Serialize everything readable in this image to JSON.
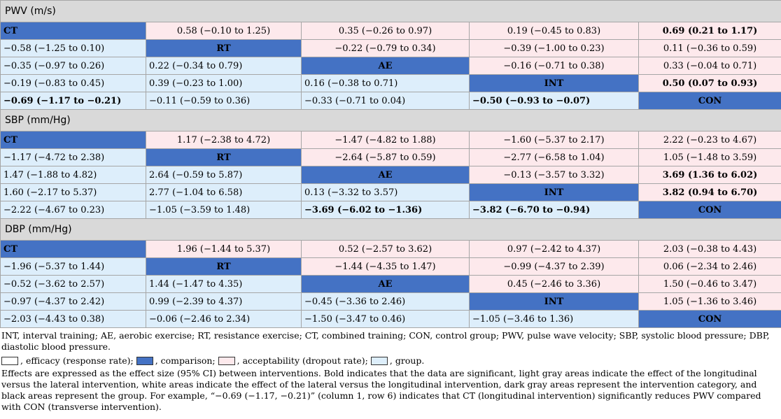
{
  "sections": [
    {
      "title": "PWV (m/s)",
      "rows": [
        [
          {
            "t": "CT",
            "k": "diag"
          },
          {
            "t": "0.58 (−0.10 to 1.25)",
            "k": "upper"
          },
          {
            "t": "0.35 (−0.26 to 0.97)",
            "k": "upper"
          },
          {
            "t": "0.19 (−0.45 to 0.83)",
            "k": "upper"
          },
          {
            "t": "0.69 (0.21 to 1.17)",
            "k": "upper",
            "b": true
          }
        ],
        [
          {
            "t": "−0.58 (−1.25 to 0.10)",
            "k": "lower"
          },
          {
            "t": "RT",
            "k": "diag"
          },
          {
            "t": "−0.22 (−0.79 to 0.34)",
            "k": "upper"
          },
          {
            "t": "−0.39 (−1.00 to 0.23)",
            "k": "upper"
          },
          {
            "t": "0.11 (−0.36 to 0.59)",
            "k": "upper"
          }
        ],
        [
          {
            "t": "−0.35 (−0.97 to 0.26)",
            "k": "lower"
          },
          {
            "t": "0.22 (−0.34 to 0.79)",
            "k": "lower"
          },
          {
            "t": "AE",
            "k": "diag"
          },
          {
            "t": "−0.16 (−0.71 to 0.38)",
            "k": "upper"
          },
          {
            "t": "0.33 (−0.04 to 0.71)",
            "k": "upper"
          }
        ],
        [
          {
            "t": "−0.19 (−0.83 to 0.45)",
            "k": "lower"
          },
          {
            "t": "0.39 (−0.23 to 1.00)",
            "k": "lower"
          },
          {
            "t": "0.16 (−0.38 to 0.71)",
            "k": "lower"
          },
          {
            "t": "INT",
            "k": "diag"
          },
          {
            "t": "0.50 (0.07 to 0.93)",
            "k": "upper",
            "b": true
          }
        ],
        [
          {
            "t": "−0.69 (−1.17 to −0.21)",
            "k": "lower",
            "b": true
          },
          {
            "t": "−0.11 (−0.59 to 0.36)",
            "k": "lower"
          },
          {
            "t": "−0.33 (−0.71 to 0.04)",
            "k": "lower"
          },
          {
            "t": "−0.50 (−0.93 to −0.07)",
            "k": "lower",
            "b": true
          },
          {
            "t": "CON",
            "k": "diag"
          }
        ]
      ]
    },
    {
      "title": "SBP (mm/Hg)",
      "rows": [
        [
          {
            "t": "CT",
            "k": "diag"
          },
          {
            "t": "1.17 (−2.38 to 4.72)",
            "k": "upper"
          },
          {
            "t": "−1.47 (−4.82 to 1.88)",
            "k": "upper"
          },
          {
            "t": "−1.60 (−5.37 to 2.17)",
            "k": "upper"
          },
          {
            "t": "2.22 (−0.23 to 4.67)",
            "k": "upper"
          }
        ],
        [
          {
            "t": "−1.17 (−4.72 to 2.38)",
            "k": "lower"
          },
          {
            "t": "RT",
            "k": "diag"
          },
          {
            "t": "−2.64 (−5.87 to 0.59)",
            "k": "upper"
          },
          {
            "t": "−2.77 (−6.58 to 1.04)",
            "k": "upper"
          },
          {
            "t": "1.05 (−1.48 to 3.59)",
            "k": "upper"
          }
        ],
        [
          {
            "t": "1.47 (−1.88 to 4.82)",
            "k": "lower"
          },
          {
            "t": "2.64 (−0.59 to 5.87)",
            "k": "lower"
          },
          {
            "t": "AE",
            "k": "diag"
          },
          {
            "t": "−0.13 (−3.57 to 3.32)",
            "k": "upper"
          },
          {
            "t": "3.69 (1.36 to 6.02)",
            "k": "upper",
            "b": true
          }
        ],
        [
          {
            "t": "1.60 (−2.17 to 5.37)",
            "k": "lower"
          },
          {
            "t": "2.77 (−1.04 to 6.58)",
            "k": "lower"
          },
          {
            "t": "0.13 (−3.32 to 3.57)",
            "k": "lower"
          },
          {
            "t": "INT",
            "k": "diag"
          },
          {
            "t": "3.82 (0.94 to 6.70)",
            "k": "upper",
            "b": true
          }
        ],
        [
          {
            "t": "−2.22 (−4.67 to 0.23)",
            "k": "lower"
          },
          {
            "t": "−1.05 (−3.59 to 1.48)",
            "k": "lower"
          },
          {
            "t": "−3.69 (−6.02 to −1.36)",
            "k": "lower",
            "b": true
          },
          {
            "t": "−3.82 (−6.70 to −0.94)",
            "k": "lower",
            "b": true
          },
          {
            "t": "CON",
            "k": "diag"
          }
        ]
      ]
    },
    {
      "title": "DBP (mm/Hg)",
      "rows": [
        [
          {
            "t": "CT",
            "k": "diag"
          },
          {
            "t": "1.96 (−1.44 to 5.37)",
            "k": "upper"
          },
          {
            "t": "0.52 (−2.57 to 3.62)",
            "k": "upper"
          },
          {
            "t": "0.97 (−2.42 to 4.37)",
            "k": "upper"
          },
          {
            "t": "2.03 (−0.38 to 4.43)",
            "k": "upper"
          }
        ],
        [
          {
            "t": "−1.96 (−5.37 to 1.44)",
            "k": "lower"
          },
          {
            "t": "RT",
            "k": "diag"
          },
          {
            "t": "−1.44 (−4.35 to 1.47)",
            "k": "upper"
          },
          {
            "t": "−0.99 (−4.37 to 2.39)",
            "k": "upper"
          },
          {
            "t": "0.06 (−2.34 to 2.46)",
            "k": "upper"
          }
        ],
        [
          {
            "t": "−0.52 (−3.62 to 2.57)",
            "k": "lower"
          },
          {
            "t": "1.44 (−1.47 to 4.35)",
            "k": "lower"
          },
          {
            "t": "AE",
            "k": "diag"
          },
          {
            "t": "0.45 (−2.46 to 3.36)",
            "k": "upper"
          },
          {
            "t": "1.50 (−0.46 to 3.47)",
            "k": "upper"
          }
        ],
        [
          {
            "t": "−0.97 (−4.37 to 2.42)",
            "k": "lower"
          },
          {
            "t": "0.99 (−2.39 to 4.37)",
            "k": "lower"
          },
          {
            "t": "−0.45 (−3.36 to 2.46)",
            "k": "lower"
          },
          {
            "t": "INT",
            "k": "diag"
          },
          {
            "t": "1.05 (−1.36 to 3.46)",
            "k": "upper"
          }
        ],
        [
          {
            "t": "−2.03 (−4.43 to 0.38)",
            "k": "lower"
          },
          {
            "t": "−0.06 (−2.46 to 2.34)",
            "k": "lower"
          },
          {
            "t": "−1.50 (−3.47 to 0.46)",
            "k": "lower"
          },
          {
            "t": "−1.05 (−3.46 to 1.36)",
            "k": "lower"
          },
          {
            "t": "CON",
            "k": "diag"
          }
        ]
      ]
    }
  ],
  "notes": {
    "abbreviations": "INT, interval training; AE, aerobic exercise; RT, resistance exercise; CT, combined training; CON, control group; PWV, pulse wave velocity; SBP, systolic blood pressure; DBP, diastolic blood pressure.",
    "legend": [
      {
        "color": "#ffffff",
        "label": ", efficacy (response rate);"
      },
      {
        "color": "#4472c4",
        "label": ", comparison;"
      },
      {
        "color": "#fde9ec",
        "label": ", acceptability (dropout rate);"
      },
      {
        "color": "#ddeefb",
        "label": ", group."
      }
    ],
    "explanation": "Effects are expressed as the effect size (95% CI) between interventions. Bold indicates that the data are significant, light gray areas indicate the effect of the longitudinal versus the lateral intervention, white areas indicate the effect of the lateral versus the longitudinal intervention, dark gray areas represent the intervention category, and black areas represent the group. For example, “−0.69 (−1.17, −0.21)” (column 1, row 6) indicates that CT (longitudinal intervention) significantly reduces PWV compared with CON (transverse intervention)."
  },
  "colors": {
    "section_bg": "#d9d9d9",
    "diagonal": "#4472c4",
    "upper": "#fde9ec",
    "lower": "#ddeefb",
    "border": "#a6a6a6"
  }
}
